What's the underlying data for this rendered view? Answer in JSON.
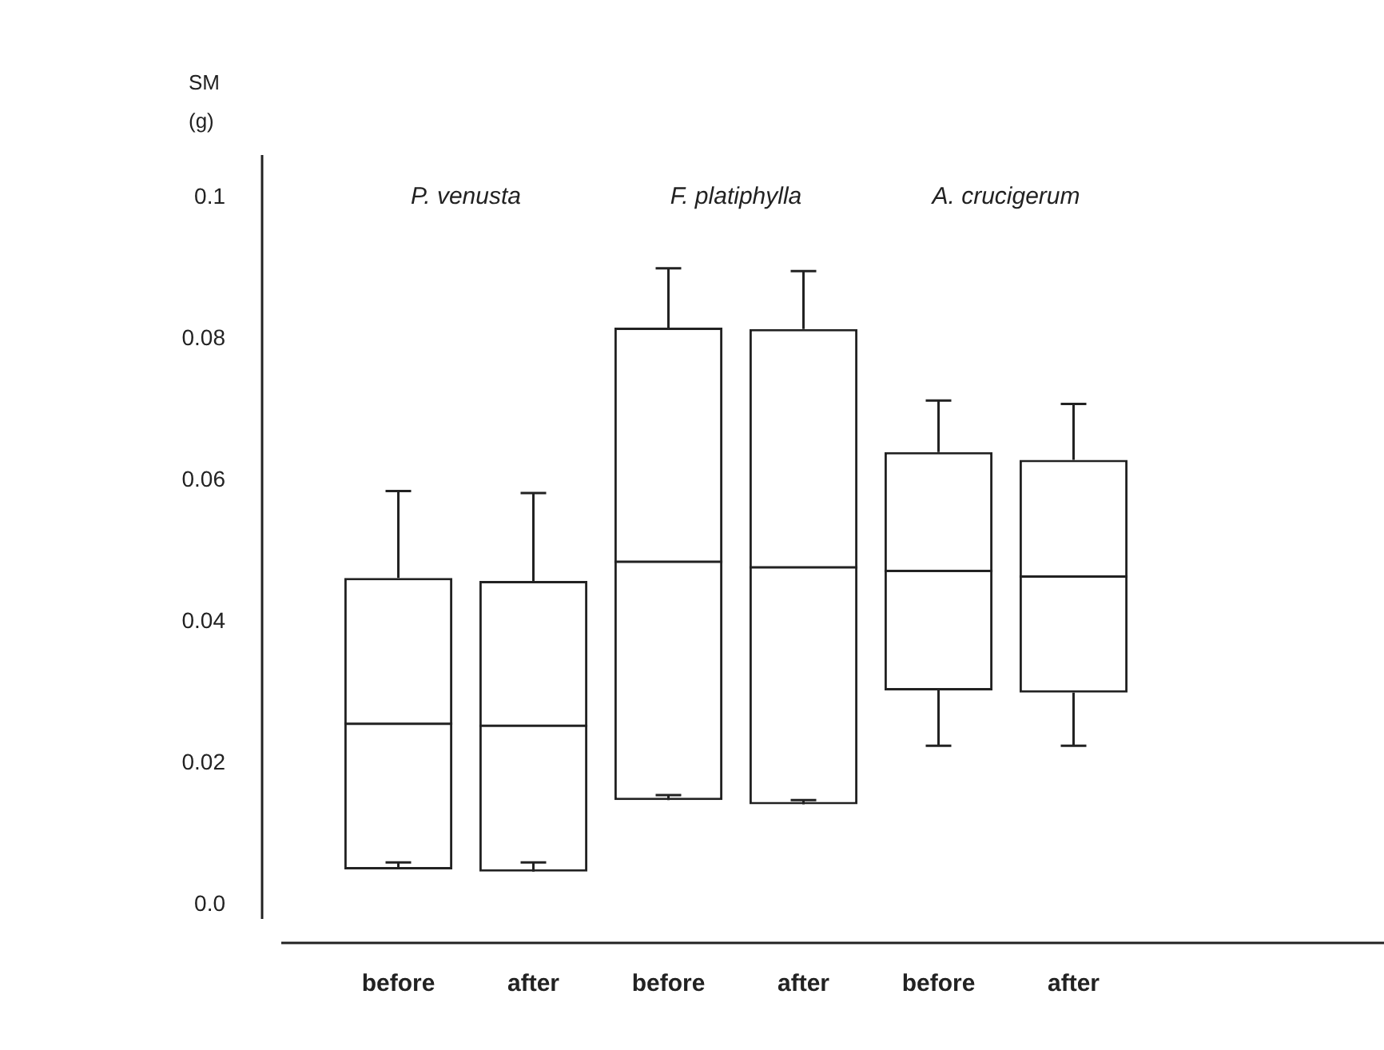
{
  "chart_data": {
    "type": "box",
    "ylabel": "SM (g)",
    "categories": [
      "before",
      "after",
      "before",
      "after",
      "before",
      "after"
    ],
    "boxes": [
      {
        "low": 0.006,
        "q1": 0.005,
        "median": 0.0256,
        "q3": 0.0462,
        "high": 0.0585
      },
      {
        "low": 0.006,
        "q1": 0.0047,
        "median": 0.0253,
        "q3": 0.0458,
        "high": 0.0582
      },
      {
        "low": 0.0155,
        "q1": 0.0148,
        "median": 0.0485,
        "q3": 0.0816,
        "high": 0.09
      },
      {
        "low": 0.0148,
        "q1": 0.0142,
        "median": 0.0477,
        "q3": 0.0814,
        "high": 0.0896
      },
      {
        "low": 0.0225,
        "q1": 0.0303,
        "median": 0.0472,
        "q3": 0.064,
        "high": 0.0713
      },
      {
        "low": 0.0225,
        "q1": 0.03,
        "median": 0.0464,
        "q3": 0.0629,
        "high": 0.0708
      }
    ],
    "ylim": [
      -0.002,
      0.106
    ],
    "yticks": [
      {
        "value": 0,
        "label": "0.0"
      },
      0.02,
      0.04,
      0.06,
      0.08,
      0.1
    ],
    "annotations": [
      "P. venusta",
      "F. platiphylla",
      "A. crucigerum"
    ],
    "grid": false,
    "legend": false
  }
}
